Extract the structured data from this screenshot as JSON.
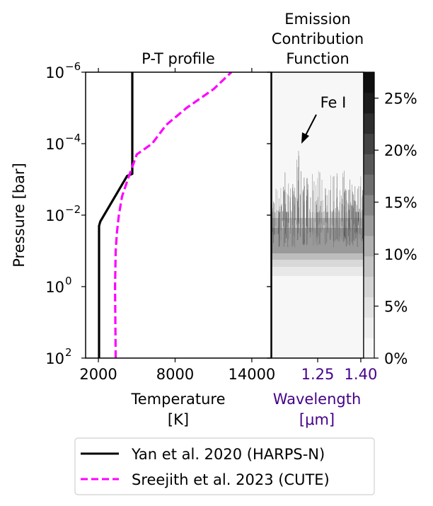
{
  "chart_data": {
    "type": "line",
    "panels": [
      {
        "title": "P-T profile",
        "xlabel_lines": [
          "Temperature",
          "[K]"
        ],
        "ylabel": "Pressure [bar]",
        "xlim": [
          1000,
          15500
        ],
        "xticks": [
          2000,
          8000,
          14000
        ],
        "xtick_labels": [
          "2000",
          "8000",
          "14000"
        ],
        "ylim": [
          100,
          1e-06
        ],
        "y_scale": "log",
        "yticks": [
          100,
          1,
          0.01,
          0.0001,
          1e-06
        ],
        "ytick_base": [
          "10",
          "10",
          "10",
          "10",
          "10"
        ],
        "ytick_exp": [
          "2",
          "0",
          "−2",
          "−4",
          "−6"
        ],
        "series": [
          {
            "name": "Yan et al. 2020 (HARPS-N)",
            "color": "#000000",
            "style": "solid",
            "points": [
              [
                2050,
                100
              ],
              [
                2050,
                0.02
              ],
              [
                2150,
                0.015
              ],
              [
                4250,
                0.0008
              ],
              [
                4650,
                0.0007
              ],
              [
                4650,
                1e-06
              ]
            ]
          },
          {
            "name": "Sreejith et al. 2023 (CUTE)",
            "color": "#ff00ff",
            "style": "dashed",
            "points": [
              [
                3350,
                100
              ],
              [
                3300,
                1
              ],
              [
                3350,
                0.1
              ],
              [
                3450,
                0.03
              ],
              [
                3600,
                0.01
              ],
              [
                3850,
                0.003
              ],
              [
                4300,
                0.001
              ],
              [
                5000,
                0.0002
              ],
              [
                6200,
                0.0001
              ],
              [
                7300,
                3e-05
              ],
              [
                8900,
                1e-05
              ],
              [
                11000,
                3e-06
              ],
              [
                12400,
                1e-06
              ]
            ]
          }
        ]
      },
      {
        "title_lines": [
          "Emission",
          "Contribution",
          "Function"
        ],
        "xlabel_lines": [
          "Wavelength",
          "[μm]"
        ],
        "xlabel_color": "#440088",
        "xticks": [
          1.25,
          1.4
        ],
        "xtick_labels": [
          "1.25",
          "1.40"
        ],
        "annotation": "Fe I"
      }
    ],
    "colorbar": {
      "ticks": [
        "0%",
        "5%",
        "10%",
        "15%",
        "20%",
        "25%"
      ],
      "tick_values": [
        0,
        5,
        10,
        15,
        20,
        25
      ],
      "max": 27.5
    },
    "legend": {
      "position": "bottom",
      "entries": [
        "Yan et al. 2020 (HARPS-N)",
        "Sreejith et al. 2023 (CUTE)"
      ]
    }
  }
}
